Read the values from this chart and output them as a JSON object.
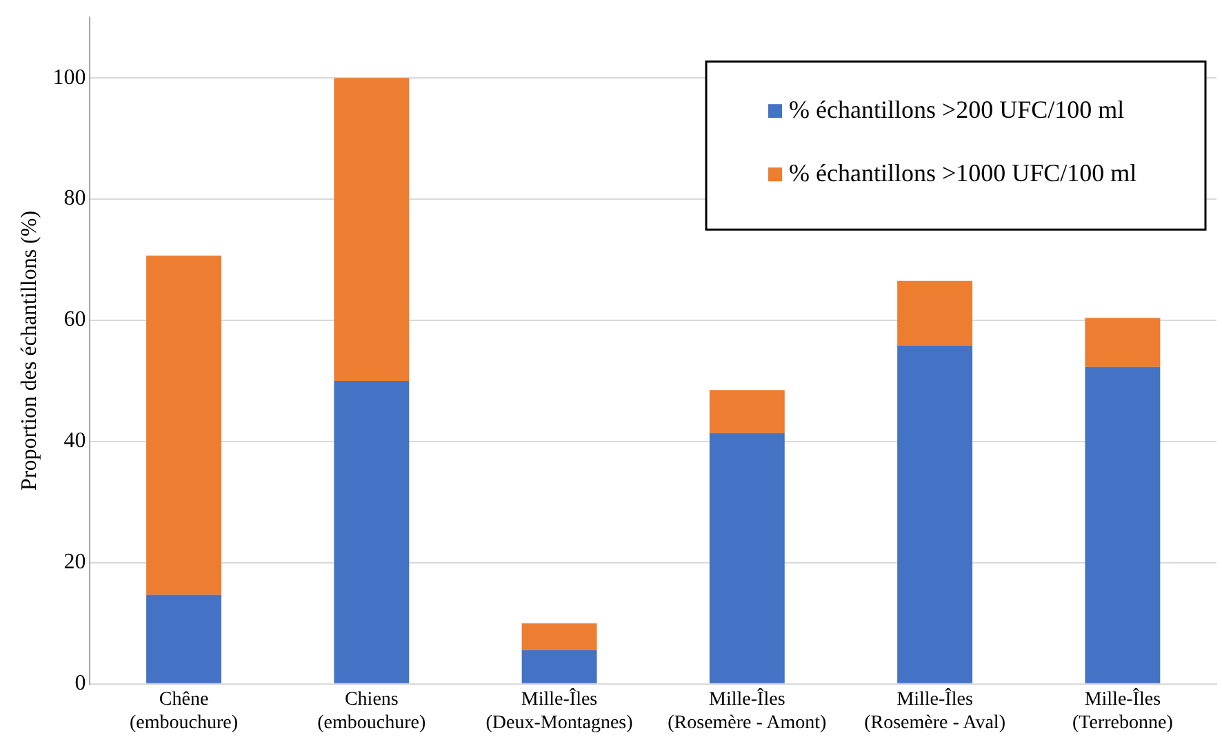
{
  "chart_data": {
    "type": "bar",
    "stacked": true,
    "ylabel": "Proportion des échantillons (%)",
    "categories": [
      "Chêne\n(embouchure)",
      "Chiens\n(embouchure)",
      "Mille-Îles\n(Deux-Montagnes)",
      "Mille-Îles\n(Rosemère - Amont)",
      "Mille-Îles\n(Rosemère - Aval)",
      "Mille-Îles\n(Terrebonne)"
    ],
    "series": [
      {
        "name": "% échantillons >200 UFC/100 ml",
        "color": "#4472c4",
        "values": [
          14.7,
          50,
          5.6,
          41.4,
          55.8,
          52.3
        ]
      },
      {
        "name": "% échantillons >1000 UFC/100 ml",
        "color": "#ed7d31",
        "values": [
          56,
          50,
          4.4,
          7.1,
          10.7,
          8.1
        ]
      }
    ],
    "ylim": [
      0,
      110
    ],
    "yticks": [
      0,
      20,
      40,
      60,
      80,
      100
    ],
    "grid": "y",
    "legend": "top right"
  }
}
